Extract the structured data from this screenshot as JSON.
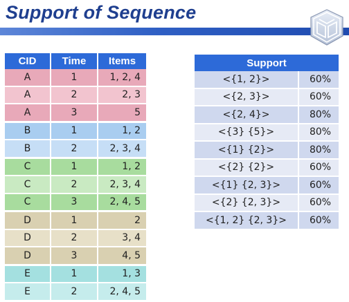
{
  "title": "Support of Sequence",
  "colors": {
    "title": "#1f3f8f",
    "header_fill": "#2d6ad8",
    "group_A": "#e8a9b9",
    "group_A_alt": "#f2c4cf",
    "group_B": "#a9cdf0",
    "group_B_alt": "#c6def6",
    "group_C": "#a8dc9e",
    "group_C_alt": "#c9eac2",
    "group_D": "#d9d0b1",
    "group_D_alt": "#e7e0c8",
    "group_E": "#a4e0e0",
    "group_E_alt": "#c5ecec"
  },
  "sequence_table": {
    "headers": [
      "CID",
      "Time",
      "Items"
    ],
    "rows": [
      {
        "cid": "A",
        "time": "1",
        "items": "1, 2, 4",
        "group": "A"
      },
      {
        "cid": "A",
        "time": "2",
        "items": "2, 3",
        "group": "A"
      },
      {
        "cid": "A",
        "time": "3",
        "items": "5",
        "group": "A"
      },
      {
        "cid": "B",
        "time": "1",
        "items": "1, 2",
        "group": "B"
      },
      {
        "cid": "B",
        "time": "2",
        "items": "2, 3, 4",
        "group": "B"
      },
      {
        "cid": "C",
        "time": "1",
        "items": "1, 2",
        "group": "C"
      },
      {
        "cid": "C",
        "time": "2",
        "items": "2, 3, 4",
        "group": "C"
      },
      {
        "cid": "C",
        "time": "3",
        "items": "2, 4, 5",
        "group": "C"
      },
      {
        "cid": "D",
        "time": "1",
        "items": "2",
        "group": "D"
      },
      {
        "cid": "D",
        "time": "2",
        "items": "3, 4",
        "group": "D"
      },
      {
        "cid": "D",
        "time": "3",
        "items": "4, 5",
        "group": "D"
      },
      {
        "cid": "E",
        "time": "1",
        "items": "1, 3",
        "group": "E"
      },
      {
        "cid": "E",
        "time": "2",
        "items": "2, 4, 5",
        "group": "E"
      }
    ]
  },
  "support_table": {
    "header": "Support",
    "rows": [
      {
        "sequence": "<{1, 2}>",
        "support": "60%"
      },
      {
        "sequence": "<{2, 3}>",
        "support": "60%"
      },
      {
        "sequence": "<{2, 4}>",
        "support": "80%"
      },
      {
        "sequence": "<{3} {5}>",
        "support": "80%"
      },
      {
        "sequence": "<{1} {2}>",
        "support": "80%"
      },
      {
        "sequence": "<{2} {2}>",
        "support": "60%"
      },
      {
        "sequence": "<{1} {2, 3}>",
        "support": "60%"
      },
      {
        "sequence": "<{2} {2, 3}>",
        "support": "60%"
      },
      {
        "sequence": "<{1, 2} {2, 3}>",
        "support": "60%"
      }
    ]
  }
}
